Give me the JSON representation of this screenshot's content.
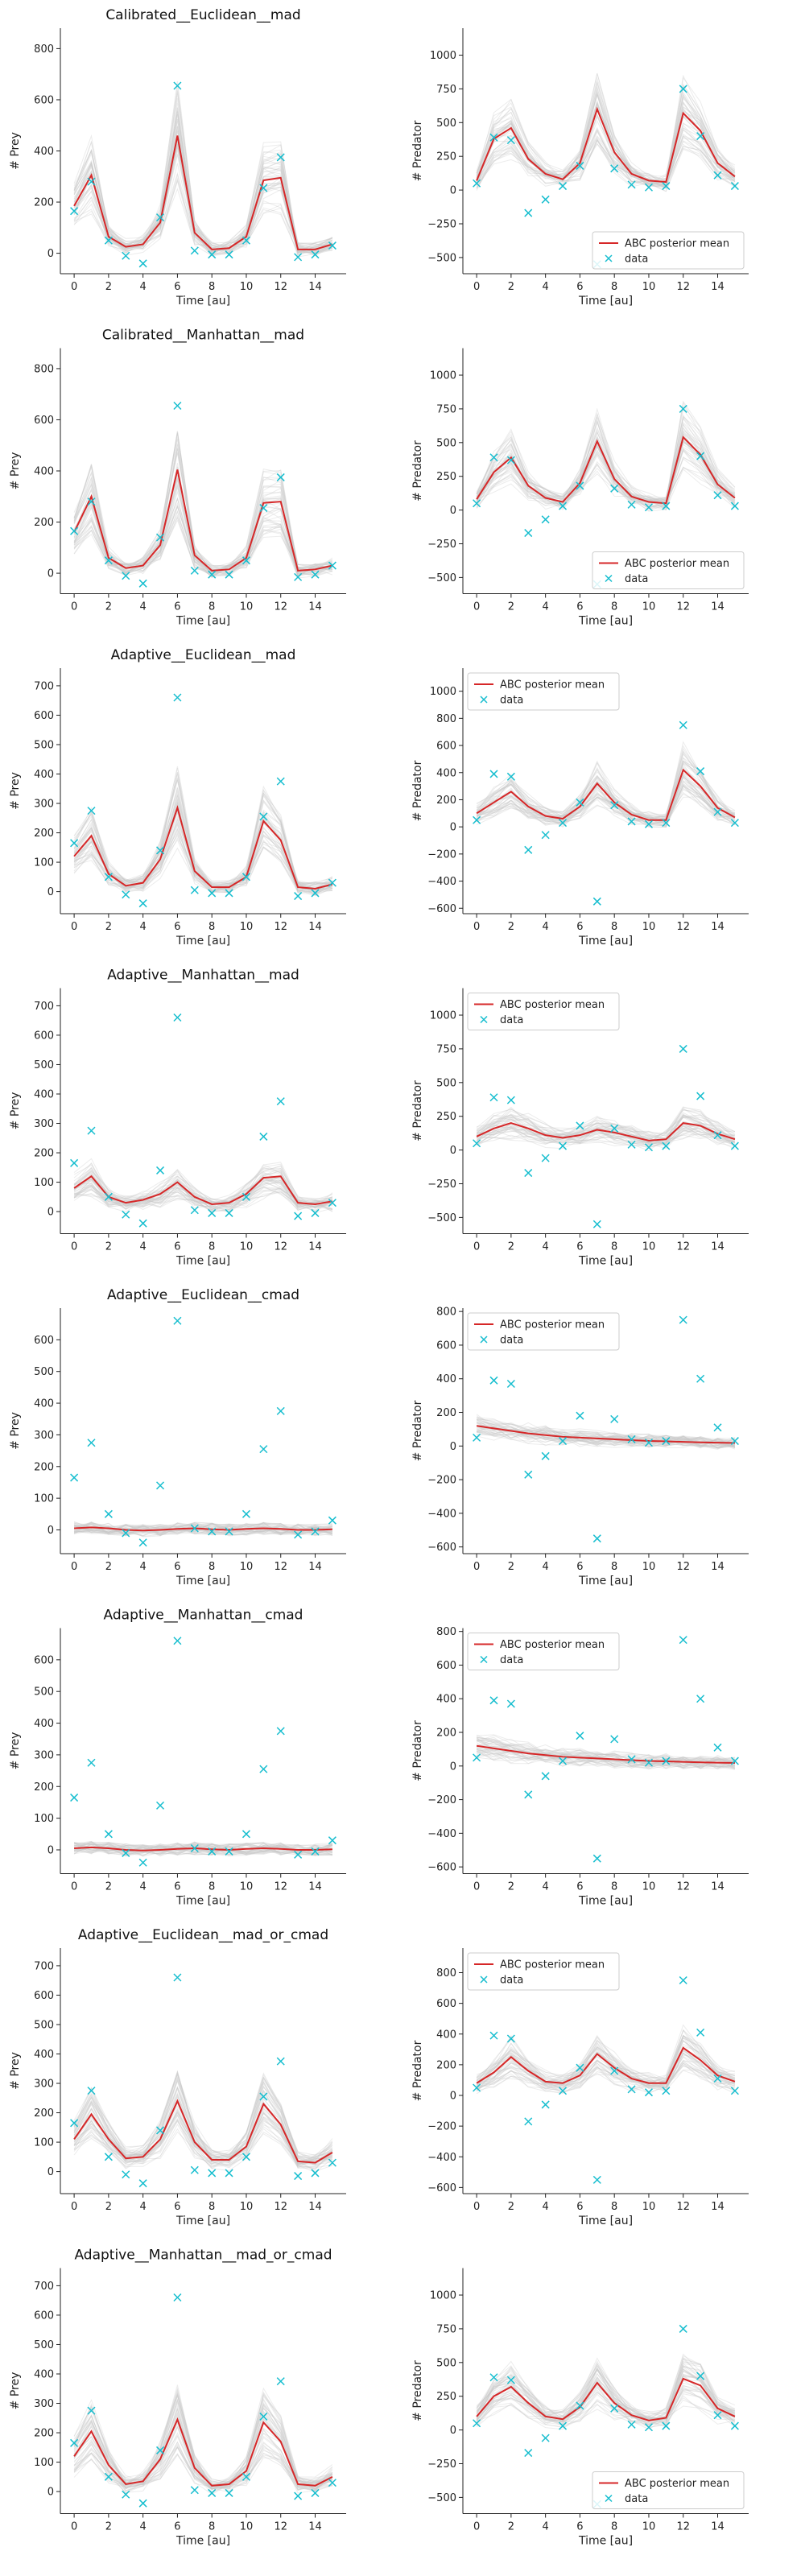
{
  "figure": {
    "legend_mean_label": "ABC posterior mean",
    "legend_data_label": "data",
    "xlabel": "Time [au]",
    "prey_ylabel": "# Prey",
    "pred_ylabel": "# Predator",
    "colors": {
      "mean": "#d62728",
      "data": "#17becf",
      "samples": "#c8c8c8",
      "axis": "#222222"
    }
  },
  "chart_data": [
    {
      "type": "line",
      "title": "Calibrated__Euclidean__mad",
      "xlabel": "Time [au]",
      "ylabel": "# Prey",
      "xlim": [
        -0.8,
        15.8
      ],
      "ylim": [
        -80,
        880
      ],
      "xticks": [
        0,
        2,
        4,
        6,
        8,
        10,
        12,
        14
      ],
      "yticks": [
        0,
        200,
        400,
        600,
        800
      ],
      "legend": "none",
      "x": [
        0,
        1,
        2,
        3,
        4,
        5,
        6,
        7,
        8,
        9,
        10,
        11,
        12,
        13,
        14,
        15
      ],
      "mean": [
        185,
        305,
        65,
        25,
        35,
        120,
        460,
        80,
        15,
        20,
        65,
        285,
        295,
        15,
        15,
        35
      ],
      "data": [
        165,
        280,
        50,
        -10,
        -40,
        140,
        655,
        10,
        -5,
        -5,
        50,
        255,
        375,
        -15,
        -5,
        30
      ]
    },
    {
      "type": "line",
      "title": "",
      "xlabel": "Time [au]",
      "ylabel": "# Predator",
      "xlim": [
        -0.8,
        15.8
      ],
      "ylim": [
        -620,
        1200
      ],
      "xticks": [
        0,
        2,
        4,
        6,
        8,
        10,
        12,
        14
      ],
      "yticks": [
        -500,
        -250,
        0,
        250,
        500,
        750,
        1000
      ],
      "legend": "lower right",
      "x": [
        0,
        1,
        2,
        3,
        4,
        5,
        6,
        7,
        8,
        9,
        10,
        11,
        12,
        13,
        14,
        15
      ],
      "mean": [
        70,
        380,
        460,
        230,
        120,
        80,
        200,
        600,
        280,
        120,
        70,
        60,
        570,
        440,
        200,
        100
      ],
      "data": [
        50,
        390,
        370,
        -170,
        -70,
        30,
        180,
        -550,
        160,
        40,
        20,
        30,
        750,
        400,
        110,
        30
      ]
    },
    {
      "type": "line",
      "title": "Calibrated__Manhattan__mad",
      "xlabel": "Time [au]",
      "ylabel": "# Prey",
      "xlim": [
        -0.8,
        15.8
      ],
      "ylim": [
        -80,
        880
      ],
      "xticks": [
        0,
        2,
        4,
        6,
        8,
        10,
        12,
        14
      ],
      "yticks": [
        0,
        200,
        400,
        600,
        800
      ],
      "legend": "none",
      "x": [
        0,
        1,
        2,
        3,
        4,
        5,
        6,
        7,
        8,
        9,
        10,
        11,
        12,
        13,
        14,
        15
      ],
      "mean": [
        160,
        300,
        60,
        20,
        30,
        110,
        405,
        70,
        10,
        15,
        60,
        275,
        280,
        10,
        15,
        30
      ],
      "data": [
        165,
        280,
        50,
        -10,
        -40,
        140,
        655,
        10,
        -5,
        -5,
        50,
        255,
        375,
        -15,
        -5,
        30
      ]
    },
    {
      "type": "line",
      "title": "",
      "xlabel": "Time [au]",
      "ylabel": "# Predator",
      "xlim": [
        -0.8,
        15.8
      ],
      "ylim": [
        -620,
        1200
      ],
      "xticks": [
        0,
        2,
        4,
        6,
        8,
        10,
        12,
        14
      ],
      "yticks": [
        -500,
        -250,
        0,
        250,
        500,
        750,
        1000
      ],
      "legend": "lower right",
      "x": [
        0,
        1,
        2,
        3,
        4,
        5,
        6,
        7,
        8,
        9,
        10,
        11,
        12,
        13,
        14,
        15
      ],
      "mean": [
        80,
        280,
        390,
        180,
        90,
        60,
        200,
        510,
        230,
        100,
        60,
        50,
        540,
        410,
        190,
        90
      ],
      "data": [
        50,
        390,
        370,
        -170,
        -70,
        30,
        180,
        -550,
        160,
        40,
        20,
        30,
        750,
        400,
        110,
        30
      ]
    },
    {
      "type": "line",
      "title": "Adaptive__Euclidean__mad",
      "xlabel": "Time [au]",
      "ylabel": "# Prey",
      "xlim": [
        -0.8,
        15.8
      ],
      "ylim": [
        -75,
        760
      ],
      "xticks": [
        0,
        2,
        4,
        6,
        8,
        10,
        12,
        14
      ],
      "yticks": [
        0,
        100,
        200,
        300,
        400,
        500,
        600,
        700
      ],
      "legend": "none",
      "x": [
        0,
        1,
        2,
        3,
        4,
        5,
        6,
        7,
        8,
        9,
        10,
        11,
        12,
        13,
        14,
        15
      ],
      "mean": [
        120,
        190,
        60,
        20,
        30,
        110,
        285,
        70,
        15,
        15,
        50,
        240,
        175,
        15,
        10,
        25
      ],
      "data": [
        165,
        275,
        50,
        -10,
        -40,
        140,
        660,
        5,
        -5,
        -5,
        50,
        255,
        375,
        -15,
        -5,
        30
      ]
    },
    {
      "type": "line",
      "title": "",
      "xlabel": "Time [au]",
      "ylabel": "# Predator",
      "xlim": [
        -0.8,
        15.8
      ],
      "ylim": [
        -640,
        1170
      ],
      "xticks": [
        0,
        2,
        4,
        6,
        8,
        10,
        12,
        14
      ],
      "yticks": [
        -600,
        -400,
        -200,
        0,
        200,
        400,
        600,
        800,
        1000
      ],
      "legend": "upper left",
      "x": [
        0,
        1,
        2,
        3,
        4,
        5,
        6,
        7,
        8,
        9,
        10,
        11,
        12,
        13,
        14,
        15
      ],
      "mean": [
        100,
        180,
        260,
        150,
        80,
        60,
        150,
        320,
        180,
        90,
        50,
        50,
        420,
        300,
        140,
        70
      ],
      "data": [
        50,
        390,
        370,
        -170,
        -60,
        30,
        180,
        -550,
        160,
        40,
        20,
        30,
        750,
        410,
        110,
        30
      ]
    },
    {
      "type": "line",
      "title": "Adaptive__Manhattan__mad",
      "xlabel": "Time [au]",
      "ylabel": "# Prey",
      "xlim": [
        -0.8,
        15.8
      ],
      "ylim": [
        -75,
        760
      ],
      "xticks": [
        0,
        2,
        4,
        6,
        8,
        10,
        12,
        14
      ],
      "yticks": [
        0,
        100,
        200,
        300,
        400,
        500,
        600,
        700
      ],
      "legend": "none",
      "x": [
        0,
        1,
        2,
        3,
        4,
        5,
        6,
        7,
        8,
        9,
        10,
        11,
        12,
        13,
        14,
        15
      ],
      "mean": [
        80,
        120,
        50,
        30,
        40,
        60,
        100,
        50,
        25,
        30,
        60,
        115,
        120,
        30,
        25,
        35
      ],
      "data": [
        165,
        275,
        50,
        -10,
        -40,
        140,
        660,
        5,
        -5,
        -5,
        50,
        255,
        375,
        -15,
        -5,
        30
      ]
    },
    {
      "type": "line",
      "title": "",
      "xlabel": "Time [au]",
      "ylabel": "# Predator",
      "xlim": [
        -0.8,
        15.8
      ],
      "ylim": [
        -620,
        1200
      ],
      "xticks": [
        0,
        2,
        4,
        6,
        8,
        10,
        12,
        14
      ],
      "yticks": [
        -500,
        -250,
        0,
        250,
        500,
        750,
        1000
      ],
      "legend": "upper left",
      "x": [
        0,
        1,
        2,
        3,
        4,
        5,
        6,
        7,
        8,
        9,
        10,
        11,
        12,
        13,
        14,
        15
      ],
      "mean": [
        100,
        160,
        200,
        160,
        110,
        90,
        110,
        150,
        130,
        100,
        70,
        80,
        200,
        180,
        120,
        80
      ],
      "data": [
        50,
        390,
        370,
        -170,
        -60,
        30,
        180,
        -550,
        160,
        40,
        20,
        30,
        750,
        400,
        110,
        30
      ]
    },
    {
      "type": "line",
      "title": "Adaptive__Euclidean__cmad",
      "xlabel": "Time [au]",
      "ylabel": "# Prey",
      "xlim": [
        -0.8,
        15.8
      ],
      "ylim": [
        -75,
        700
      ],
      "xticks": [
        0,
        2,
        4,
        6,
        8,
        10,
        12,
        14
      ],
      "yticks": [
        0,
        100,
        200,
        300,
        400,
        500,
        600
      ],
      "legend": "none",
      "x": [
        0,
        1,
        2,
        3,
        4,
        5,
        6,
        7,
        8,
        9,
        10,
        11,
        12,
        13,
        14,
        15
      ],
      "mean": [
        5,
        8,
        5,
        0,
        -2,
        0,
        3,
        5,
        2,
        0,
        3,
        5,
        3,
        0,
        0,
        2
      ],
      "data": [
        165,
        275,
        50,
        -10,
        -40,
        140,
        660,
        5,
        -5,
        -5,
        50,
        255,
        375,
        -15,
        -5,
        30
      ]
    },
    {
      "type": "line",
      "title": "",
      "xlabel": "Time [au]",
      "ylabel": "# Predator",
      "xlim": [
        -0.8,
        15.8
      ],
      "ylim": [
        -640,
        820
      ],
      "xticks": [
        0,
        2,
        4,
        6,
        8,
        10,
        12,
        14
      ],
      "yticks": [
        -600,
        -400,
        -200,
        0,
        200,
        400,
        600,
        800
      ],
      "legend": "upper left",
      "x": [
        0,
        1,
        2,
        3,
        4,
        5,
        6,
        7,
        8,
        9,
        10,
        11,
        12,
        13,
        14,
        15
      ],
      "mean": [
        120,
        105,
        90,
        75,
        65,
        55,
        50,
        45,
        40,
        35,
        30,
        28,
        25,
        22,
        20,
        18
      ],
      "data": [
        50,
        390,
        370,
        -170,
        -60,
        30,
        180,
        -550,
        160,
        40,
        20,
        30,
        750,
        400,
        110,
        30
      ]
    },
    {
      "type": "line",
      "title": "Adaptive__Manhattan__cmad",
      "xlabel": "Time [au]",
      "ylabel": "# Prey",
      "xlim": [
        -0.8,
        15.8
      ],
      "ylim": [
        -75,
        700
      ],
      "xticks": [
        0,
        2,
        4,
        6,
        8,
        10,
        12,
        14
      ],
      "yticks": [
        0,
        100,
        200,
        300,
        400,
        500,
        600
      ],
      "legend": "none",
      "x": [
        0,
        1,
        2,
        3,
        4,
        5,
        6,
        7,
        8,
        9,
        10,
        11,
        12,
        13,
        14,
        15
      ],
      "mean": [
        5,
        8,
        5,
        0,
        -2,
        0,
        3,
        5,
        2,
        0,
        3,
        5,
        3,
        0,
        0,
        2
      ],
      "data": [
        165,
        275,
        50,
        -10,
        -40,
        140,
        660,
        5,
        -5,
        -5,
        50,
        255,
        375,
        -15,
        -5,
        30
      ]
    },
    {
      "type": "line",
      "title": "",
      "xlabel": "Time [au]",
      "ylabel": "# Predator",
      "xlim": [
        -0.8,
        15.8
      ],
      "ylim": [
        -640,
        820
      ],
      "xticks": [
        0,
        2,
        4,
        6,
        8,
        10,
        12,
        14
      ],
      "yticks": [
        -600,
        -400,
        -200,
        0,
        200,
        400,
        600,
        800
      ],
      "legend": "upper left",
      "x": [
        0,
        1,
        2,
        3,
        4,
        5,
        6,
        7,
        8,
        9,
        10,
        11,
        12,
        13,
        14,
        15
      ],
      "mean": [
        120,
        105,
        90,
        75,
        65,
        55,
        50,
        45,
        40,
        35,
        30,
        28,
        25,
        22,
        20,
        18
      ],
      "data": [
        50,
        390,
        370,
        -170,
        -60,
        30,
        180,
        -550,
        160,
        40,
        20,
        30,
        750,
        400,
        110,
        30
      ]
    },
    {
      "type": "line",
      "title": "Adaptive__Euclidean__mad_or_cmad",
      "xlabel": "Time [au]",
      "ylabel": "# Prey",
      "xlim": [
        -0.8,
        15.8
      ],
      "ylim": [
        -75,
        760
      ],
      "xticks": [
        0,
        2,
        4,
        6,
        8,
        10,
        12,
        14
      ],
      "yticks": [
        0,
        100,
        200,
        300,
        400,
        500,
        600,
        700
      ],
      "legend": "none",
      "x": [
        0,
        1,
        2,
        3,
        4,
        5,
        6,
        7,
        8,
        9,
        10,
        11,
        12,
        13,
        14,
        15
      ],
      "mean": [
        110,
        195,
        110,
        45,
        50,
        110,
        240,
        100,
        40,
        40,
        85,
        230,
        160,
        35,
        30,
        65
      ],
      "data": [
        165,
        275,
        50,
        -10,
        -40,
        140,
        660,
        5,
        -5,
        -5,
        50,
        255,
        375,
        -15,
        -5,
        30
      ]
    },
    {
      "type": "line",
      "title": "",
      "xlabel": "Time [au]",
      "ylabel": "# Predator",
      "xlim": [
        -0.8,
        15.8
      ],
      "ylim": [
        -640,
        960
      ],
      "xticks": [
        0,
        2,
        4,
        6,
        8,
        10,
        12,
        14
      ],
      "yticks": [
        -600,
        -400,
        -200,
        0,
        200,
        400,
        600,
        800
      ],
      "legend": "upper left",
      "x": [
        0,
        1,
        2,
        3,
        4,
        5,
        6,
        7,
        8,
        9,
        10,
        11,
        12,
        13,
        14,
        15
      ],
      "mean": [
        80,
        150,
        250,
        160,
        90,
        80,
        130,
        270,
        180,
        110,
        80,
        80,
        310,
        230,
        130,
        90
      ],
      "data": [
        50,
        390,
        370,
        -170,
        -60,
        30,
        180,
        -550,
        160,
        40,
        20,
        30,
        750,
        410,
        110,
        30
      ]
    },
    {
      "type": "line",
      "title": "Adaptive__Manhattan__mad_or_cmad",
      "xlabel": "Time [au]",
      "ylabel": "# Prey",
      "xlim": [
        -0.8,
        15.8
      ],
      "ylim": [
        -75,
        760
      ],
      "xticks": [
        0,
        2,
        4,
        6,
        8,
        10,
        12,
        14
      ],
      "yticks": [
        0,
        100,
        200,
        300,
        400,
        500,
        600,
        700
      ],
      "legend": "none",
      "x": [
        0,
        1,
        2,
        3,
        4,
        5,
        6,
        7,
        8,
        9,
        10,
        11,
        12,
        13,
        14,
        15
      ],
      "mean": [
        120,
        205,
        90,
        25,
        35,
        110,
        245,
        80,
        20,
        25,
        70,
        235,
        170,
        25,
        20,
        50
      ],
      "data": [
        165,
        275,
        50,
        -10,
        -40,
        140,
        660,
        5,
        -5,
        -5,
        50,
        255,
        375,
        -15,
        -5,
        30
      ]
    },
    {
      "type": "line",
      "title": "",
      "xlabel": "Time [au]",
      "ylabel": "# Predator",
      "xlim": [
        -0.8,
        15.8
      ],
      "ylim": [
        -620,
        1200
      ],
      "xticks": [
        0,
        2,
        4,
        6,
        8,
        10,
        12,
        14
      ],
      "yticks": [
        -500,
        -250,
        0,
        250,
        500,
        750,
        1000
      ],
      "legend": "lower right",
      "x": [
        0,
        1,
        2,
        3,
        4,
        5,
        6,
        7,
        8,
        9,
        10,
        11,
        12,
        13,
        14,
        15
      ],
      "mean": [
        100,
        250,
        320,
        200,
        100,
        80,
        170,
        350,
        200,
        110,
        70,
        90,
        380,
        330,
        160,
        100
      ],
      "data": [
        50,
        390,
        370,
        -170,
        -60,
        30,
        180,
        -550,
        160,
        40,
        20,
        30,
        750,
        400,
        110,
        30
      ]
    }
  ]
}
